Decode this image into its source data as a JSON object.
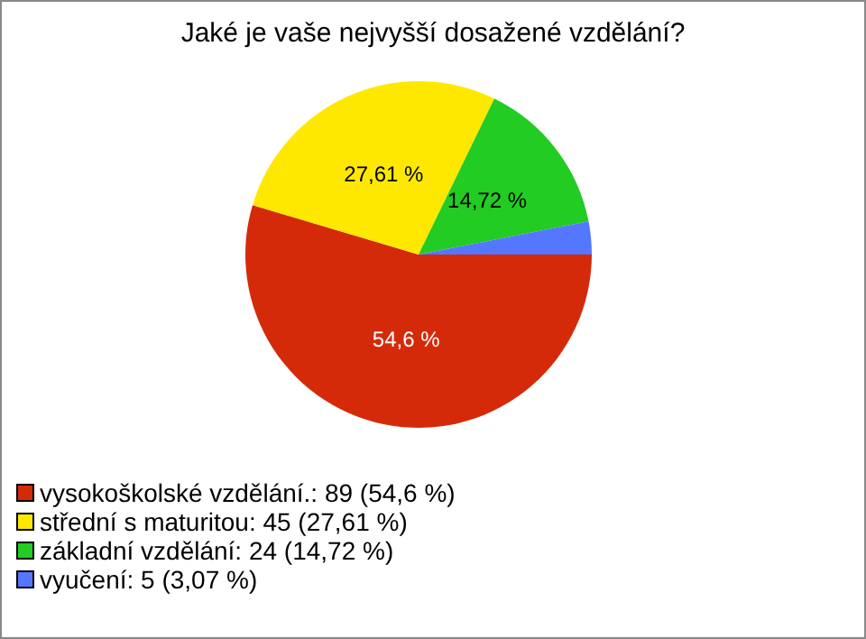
{
  "chart_data": {
    "type": "pie",
    "title": "Jaké je vaše nejvyšší dosažené vzdělání?",
    "categories": [
      "vysokoškolské vzdělání.: 89 (54,6 %)",
      "střední s maturitou: 45 (27,61 %)",
      "základní vzdělání: 24 (14,72 %)",
      "vyučení: 5 (3,07 %)"
    ],
    "values": [
      54.6,
      27.61,
      14.72,
      3.07
    ],
    "colors": [
      "#d42a0a",
      "#ffe800",
      "#22cc22",
      "#5577ff"
    ],
    "value_labels": [
      "54,6 %",
      "27,61 %",
      "14,72 %",
      null
    ],
    "legend": "bottom left"
  }
}
